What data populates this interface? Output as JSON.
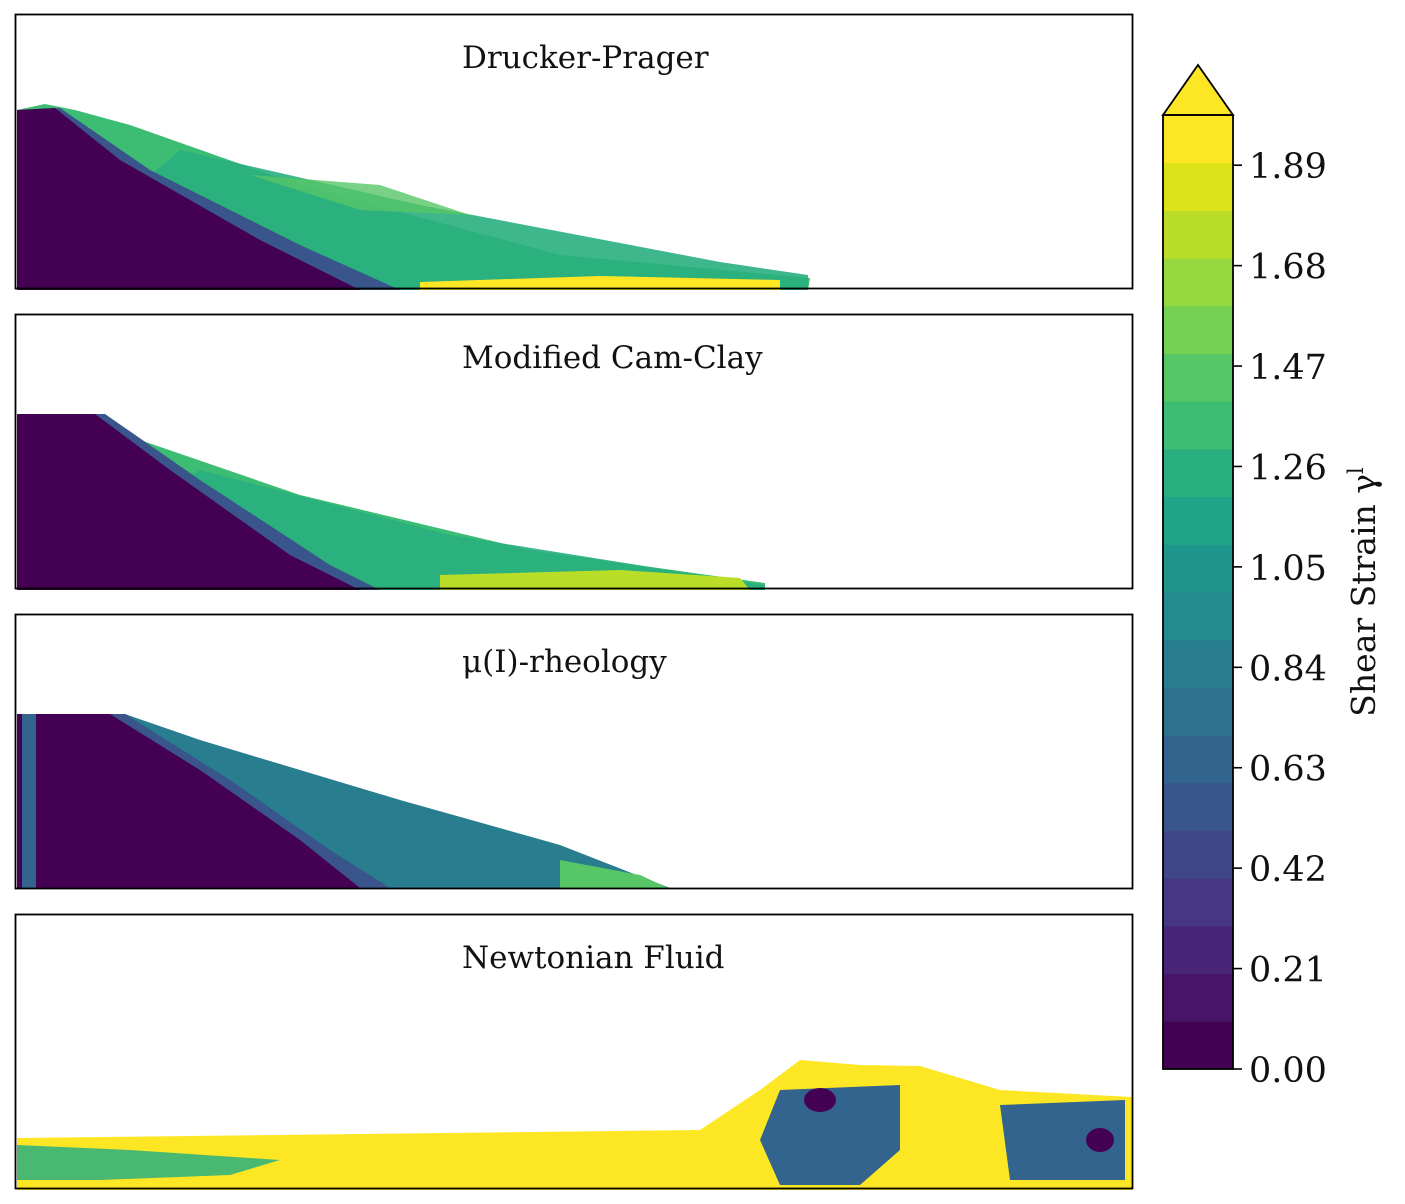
{
  "chart_data": {
    "type": "heatmap",
    "panels": [
      {
        "title": "Drucker-Prager",
        "runout_x": 0.71,
        "peak_height": 0.66
      },
      {
        "title": "Modified Cam-Clay",
        "runout_x": 0.675,
        "peak_height": 0.63
      },
      {
        "title": "μ(I)-rheology",
        "runout_x": 0.585,
        "peak_height": 0.63
      },
      {
        "title": "Newtonian Fluid",
        "runout_x": 1.0,
        "peak_height": 0.47
      }
    ],
    "colorbar": {
      "label": "Shear Strain γ",
      "label_superscript": "l",
      "extend": "max",
      "vmin": 0.0,
      "vmax": 1.995,
      "ticks": [
        "0.00",
        "0.21",
        "0.42",
        "0.63",
        "0.84",
        "1.05",
        "1.26",
        "1.47",
        "1.68",
        "1.89"
      ],
      "levels": 20,
      "colors": [
        "#440154",
        "#481467",
        "#482576",
        "#453781",
        "#3f4788",
        "#39558c",
        "#32648e",
        "#2d718e",
        "#287d8e",
        "#238a8d",
        "#1f968b",
        "#20a386",
        "#29af7f",
        "#3dbc74",
        "#56c667",
        "#75d054",
        "#95d840",
        "#bade28",
        "#dde318",
        "#fde725"
      ]
    }
  }
}
